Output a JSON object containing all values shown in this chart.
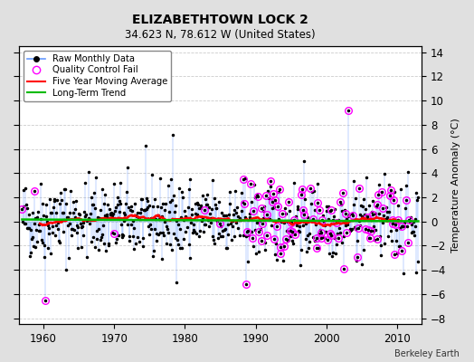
{
  "title": "ELIZABETHTOWN LOCK 2",
  "subtitle": "34.623 N, 78.612 W (United States)",
  "ylabel_right": "Temperature Anomaly (°C)",
  "credit": "Berkeley Earth",
  "ylim": [
    -8.5,
    14.5
  ],
  "yticks": [
    -8,
    -6,
    -4,
    -2,
    0,
    2,
    4,
    6,
    8,
    10,
    12,
    14
  ],
  "year_start": 1957,
  "year_end": 2013,
  "background_color": "#e0e0e0",
  "plot_bg_color": "#ffffff",
  "raw_line_color": "#6699ff",
  "raw_dot_color": "#000000",
  "qc_fail_color": "#ff00ff",
  "moving_avg_color": "#ff0000",
  "trend_color": "#00bb00",
  "seed": 42
}
